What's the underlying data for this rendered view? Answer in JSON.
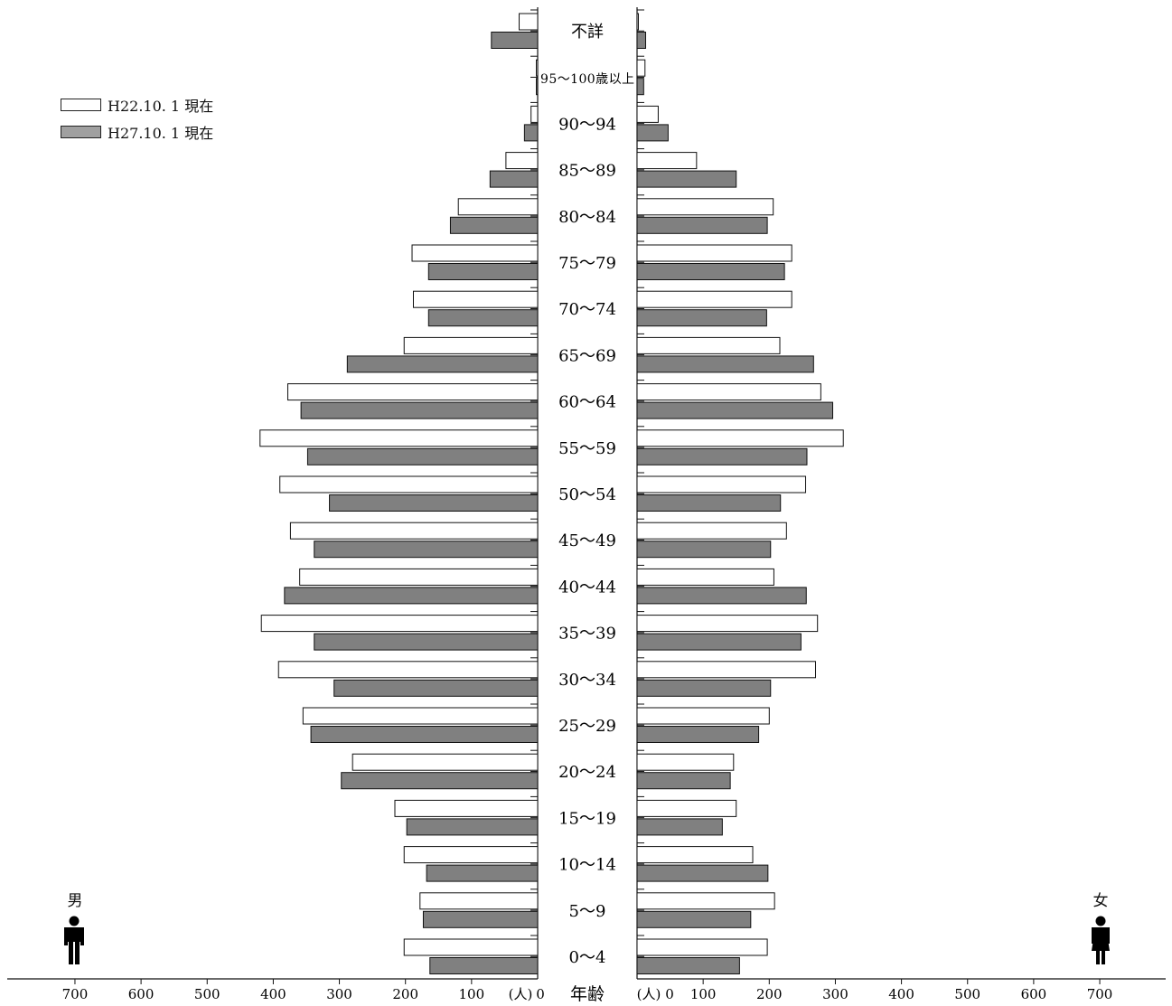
{
  "chart_data": {
    "type": "bar",
    "categories": [
      "不詳",
      "95～100歳以上",
      "90～94",
      "85～89",
      "80～84",
      "75～79",
      "70～74",
      "65～69",
      "60～64",
      "55～59",
      "50～54",
      "45～49",
      "40～44",
      "35～39",
      "30～34",
      "25～29",
      "20～24",
      "15～19",
      "10～14",
      "5～9",
      "0～4"
    ],
    "series": [
      {
        "name": "H22.10. 1 現在",
        "color": "#ffffff",
        "male": [
          28,
          2,
          10,
          48,
          120,
          190,
          188,
          202,
          378,
          420,
          390,
          374,
          360,
          418,
          392,
          355,
          280,
          216,
          202,
          178,
          202
        ],
        "female": [
          2,
          12,
          32,
          90,
          206,
          234,
          234,
          216,
          278,
          312,
          255,
          226,
          207,
          273,
          270,
          200,
          146,
          150,
          175,
          208,
          197
        ]
      },
      {
        "name": "H27.10. 1 現在",
        "color": "#808080",
        "male": [
          70,
          2,
          20,
          72,
          132,
          165,
          165,
          288,
          358,
          348,
          315,
          338,
          383,
          338,
          308,
          343,
          297,
          198,
          168,
          173,
          163
        ],
        "female": [
          13,
          10,
          47,
          150,
          197,
          223,
          196,
          267,
          296,
          257,
          217,
          202,
          256,
          248,
          202,
          184,
          141,
          129,
          198,
          172,
          155
        ]
      }
    ],
    "xlim": [
      0,
      700
    ],
    "tick_values": [
      0,
      100,
      200,
      300,
      400,
      500,
      600,
      700
    ],
    "unit_label": "(人)",
    "center_label": "年齢",
    "male_label": "男",
    "female_label": "女",
    "legend_position": "top-left"
  }
}
